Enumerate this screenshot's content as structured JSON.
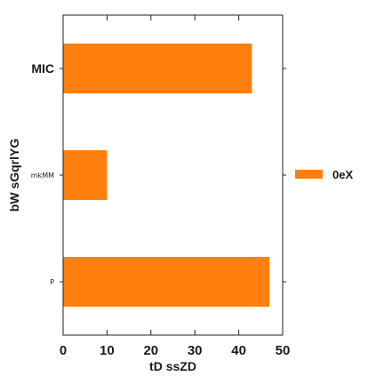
{
  "chart_data": {
    "type": "bar",
    "orientation": "horizontal",
    "categories": [
      "P",
      "mkMM",
      "MIC"
    ],
    "series": [
      {
        "name": "0eX",
        "values": [
          47,
          10,
          43
        ],
        "color": "#ff7f0e"
      }
    ],
    "xlabel": "tD ssZD",
    "ylabel": "bW sGqrlYG",
    "xlim": [
      0,
      50
    ],
    "xticks": [
      0,
      10,
      20,
      30,
      40,
      50
    ],
    "grid": false,
    "legend_position": "right"
  }
}
